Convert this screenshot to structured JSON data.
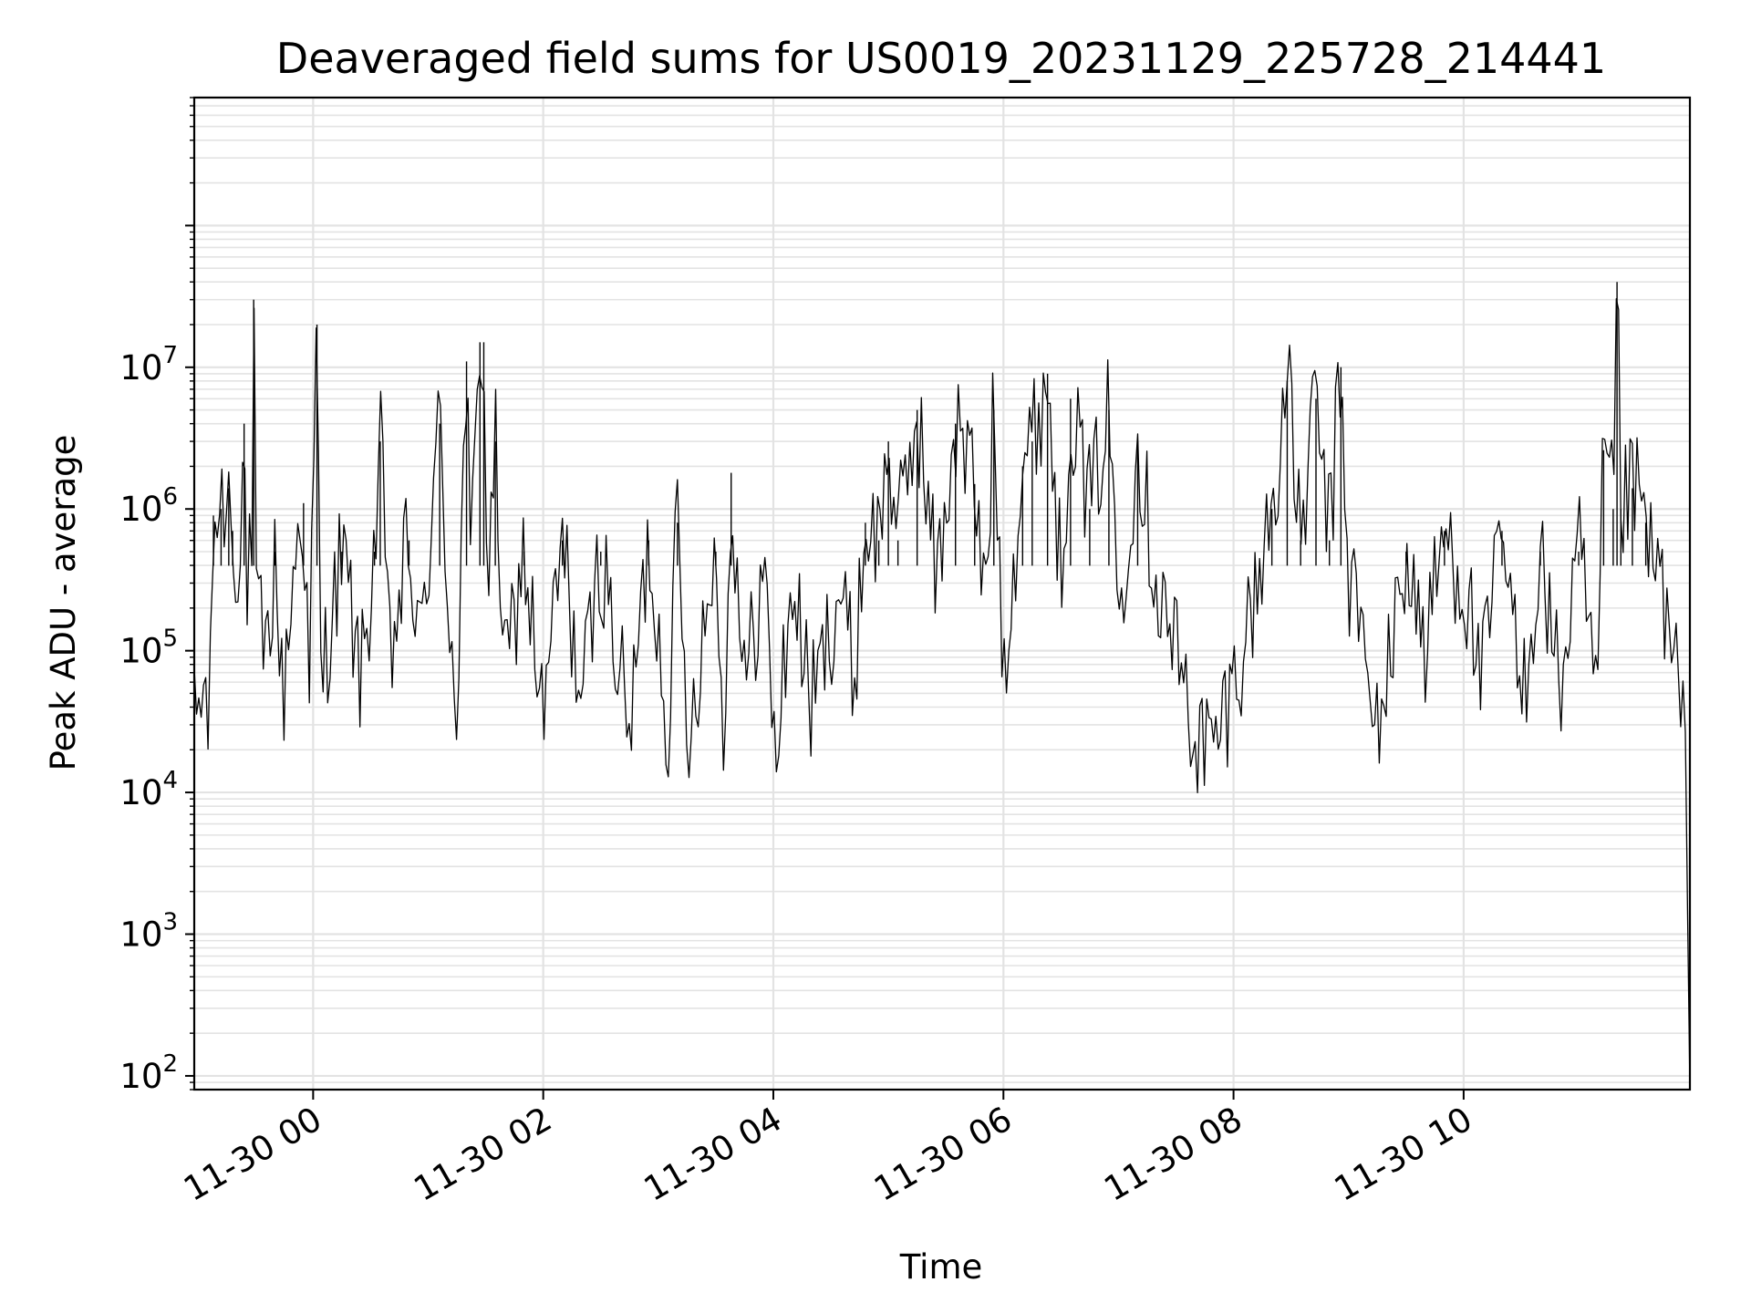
{
  "chart_data": {
    "type": "line",
    "title": "Deaveraged field sums for US0019_20231129_225728_214441",
    "xlabel": "Time",
    "ylabel": "Peak ADU - average",
    "yscale": "log",
    "ylim": [
      80,
      800000000
    ],
    "xlim": [
      "2023-11-29 22:58",
      "2023-11-30 11:58"
    ],
    "grid": true,
    "x_tick_labels": [
      "11-30 00",
      "11-30 02",
      "11-30 04",
      "11-30 06",
      "11-30 08",
      "11-30 10"
    ],
    "x_tick_times": [
      "2023-11-30 00:00",
      "2023-11-30 02:00",
      "2023-11-30 04:00",
      "2023-11-30 06:00",
      "2023-11-30 08:00",
      "2023-11-30 10:00"
    ],
    "y_tick_labels": [
      {
        "base": "10",
        "exp": "2",
        "value": 100
      },
      {
        "base": "10",
        "exp": "3",
        "value": 1000
      },
      {
        "base": "10",
        "exp": "4",
        "value": 10000
      },
      {
        "base": "10",
        "exp": "5",
        "value": 100000
      },
      {
        "base": "10",
        "exp": "6",
        "value": 1000000
      },
      {
        "base": "10",
        "exp": "7",
        "value": 10000000
      }
    ],
    "series": [
      {
        "color": "#000000",
        "points": [
          [
            "2023-11-29 22:58",
            30000
          ],
          [
            "2023-11-29 23:00",
            40000
          ],
          [
            "2023-11-29 23:04",
            50000
          ],
          [
            "2023-11-29 23:06",
            25000
          ],
          [
            "2023-11-29 23:07",
            140000
          ],
          [
            "2023-11-29 23:08",
            900000
          ],
          [
            "2023-11-29 23:12",
            1000000
          ],
          [
            "2023-11-29 23:16",
            1400000
          ],
          [
            "2023-11-29 23:18",
            700000
          ],
          [
            "2023-11-29 23:22",
            400000
          ],
          [
            "2023-11-29 23:24",
            4000000
          ],
          [
            "2023-11-29 23:25",
            300000
          ],
          [
            "2023-11-29 23:28",
            400000
          ],
          [
            "2023-11-29 23:29",
            30000000
          ],
          [
            "2023-11-29 23:30",
            200000
          ],
          [
            "2023-11-29 23:36",
            80000
          ],
          [
            "2023-11-29 23:40",
            500000
          ],
          [
            "2023-11-29 23:44",
            40000
          ],
          [
            "2023-11-29 23:50",
            400000
          ],
          [
            "2023-11-29 23:55",
            1100000
          ],
          [
            "2023-11-29 23:58",
            50000
          ],
          [
            "2023-11-30 00:02",
            20000000
          ],
          [
            "2023-11-30 00:04",
            60000
          ],
          [
            "2023-11-30 00:15",
            500000
          ],
          [
            "2023-11-30 00:25",
            60000
          ],
          [
            "2023-11-30 00:32",
            500000
          ],
          [
            "2023-11-30 00:35",
            3000000
          ],
          [
            "2023-11-30 00:40",
            80000
          ],
          [
            "2023-11-30 00:50",
            600000
          ],
          [
            "2023-11-30 00:55",
            80000
          ],
          [
            "2023-11-30 01:06",
            4000000
          ],
          [
            "2023-11-30 01:10",
            300000
          ],
          [
            "2023-11-30 01:15",
            40000
          ],
          [
            "2023-11-30 01:20",
            11000000
          ],
          [
            "2023-11-30 01:22",
            300000
          ],
          [
            "2023-11-30 01:27",
            15000000
          ],
          [
            "2023-11-30 01:29",
            15000000
          ],
          [
            "2023-11-30 01:31",
            200000
          ],
          [
            "2023-11-30 01:35",
            3000000
          ],
          [
            "2023-11-30 01:40",
            60000
          ],
          [
            "2023-11-30 01:50",
            500000
          ],
          [
            "2023-11-30 02:00",
            30000
          ],
          [
            "2023-11-30 02:10",
            600000
          ],
          [
            "2023-11-30 02:20",
            40000
          ],
          [
            "2023-11-30 02:30",
            500000
          ],
          [
            "2023-11-30 02:45",
            25000
          ],
          [
            "2023-11-30 02:55",
            600000
          ],
          [
            "2023-11-30 03:05",
            30000
          ],
          [
            "2023-11-30 03:10",
            800000
          ],
          [
            "2023-11-30 03:15",
            25000
          ],
          [
            "2023-11-30 03:30",
            500000
          ],
          [
            "2023-11-30 03:35",
            20000
          ],
          [
            "2023-11-30 03:38",
            1800000
          ],
          [
            "2023-11-30 03:45",
            50000
          ],
          [
            "2023-11-30 03:55",
            400000
          ],
          [
            "2023-11-30 04:01",
            17000
          ],
          [
            "2023-11-30 04:10",
            300000
          ],
          [
            "2023-11-30 04:20",
            40000
          ],
          [
            "2023-11-30 04:35",
            300000
          ],
          [
            "2023-11-30 04:42",
            60000
          ],
          [
            "2023-11-30 04:48",
            800000
          ],
          [
            "2023-11-30 04:55",
            600000
          ],
          [
            "2023-11-30 05:00",
            3000000
          ],
          [
            "2023-11-30 05:05",
            600000
          ],
          [
            "2023-11-30 05:15",
            5000000
          ],
          [
            "2023-11-30 05:25",
            300000
          ],
          [
            "2023-11-30 05:35",
            4000000
          ],
          [
            "2023-11-30 05:45",
            1500000
          ],
          [
            "2023-11-30 05:50",
            200000
          ],
          [
            "2023-11-30 05:55",
            5000000
          ],
          [
            "2023-11-30 06:00",
            80000
          ],
          [
            "2023-11-30 06:10",
            2000000
          ],
          [
            "2023-11-30 06:15",
            3000000
          ],
          [
            "2023-11-30 06:23",
            9000000
          ],
          [
            "2023-11-30 06:30",
            300000
          ],
          [
            "2023-11-30 06:35",
            6000000
          ],
          [
            "2023-11-30 06:45",
            1000000
          ],
          [
            "2023-11-30 06:55",
            5000000
          ],
          [
            "2023-11-30 07:00",
            200000
          ],
          [
            "2023-11-30 07:10",
            3000000
          ],
          [
            "2023-11-30 07:20",
            300000
          ],
          [
            "2023-11-30 07:30",
            100000
          ],
          [
            "2023-11-30 07:40",
            25000
          ],
          [
            "2023-11-30 07:50",
            20000
          ],
          [
            "2023-11-30 08:00",
            60000
          ],
          [
            "2023-11-30 08:10",
            200000
          ],
          [
            "2023-11-30 08:20",
            1000000
          ],
          [
            "2023-11-30 08:28",
            8000000
          ],
          [
            "2023-11-30 08:35",
            600000
          ],
          [
            "2023-11-30 08:43",
            6000000
          ],
          [
            "2023-11-30 08:50",
            600000
          ],
          [
            "2023-11-30 08:56",
            10000000
          ],
          [
            "2023-11-30 09:00",
            300000
          ],
          [
            "2023-11-30 09:06",
            200000
          ],
          [
            "2023-11-30 09:12",
            25000
          ],
          [
            "2023-11-30 09:20",
            60000
          ],
          [
            "2023-11-30 09:30",
            500000
          ],
          [
            "2023-11-30 09:40",
            100000
          ],
          [
            "2023-11-30 09:50",
            700000
          ],
          [
            "2023-11-30 10:00",
            300000
          ],
          [
            "2023-11-30 10:10",
            60000
          ],
          [
            "2023-11-30 10:20",
            700000
          ],
          [
            "2023-11-30 10:30",
            40000
          ],
          [
            "2023-11-30 10:40",
            500000
          ],
          [
            "2023-11-30 10:50",
            50000
          ],
          [
            "2023-11-30 11:00",
            500000
          ],
          [
            "2023-11-30 11:10",
            40000
          ],
          [
            "2023-11-30 11:13",
            2600000
          ],
          [
            "2023-11-30 11:18",
            1000000
          ],
          [
            "2023-11-30 11:20",
            40000000
          ],
          [
            "2023-11-30 11:22",
            1000000
          ],
          [
            "2023-11-30 11:28",
            1400000
          ],
          [
            "2023-11-30 11:35",
            800000
          ],
          [
            "2023-11-30 11:40",
            300000
          ],
          [
            "2023-11-30 11:43",
            400000
          ],
          [
            "2023-11-30 11:48",
            80000
          ],
          [
            "2023-11-30 11:52",
            60000
          ],
          [
            "2023-11-30 11:55",
            20000
          ],
          [
            "2023-11-30 11:57",
            3000
          ],
          [
            "2023-11-30 11:58",
            120
          ]
        ]
      }
    ]
  }
}
